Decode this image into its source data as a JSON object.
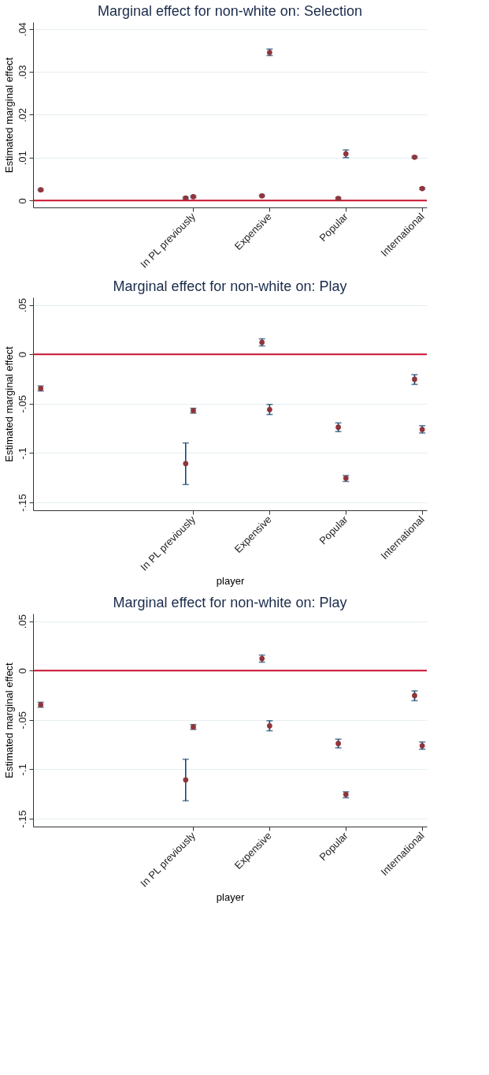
{
  "chart_data": [
    {
      "type": "scatter",
      "title": "Marginal effect for non-white on: Selection",
      "ylabel": "Estimated marginal effect",
      "categories": [
        null,
        null,
        "In PL previously",
        "Expensive",
        "Popular",
        "International"
      ],
      "marker": "circle",
      "grid": "y",
      "legend": false,
      "ylim": [
        -0.0016,
        0.0416
      ],
      "yticks": [
        0,
        {
          "value": 0.01,
          "label": ".01"
        },
        {
          "value": 0.02,
          "label": ".02"
        },
        {
          "value": 0.03,
          "label": ".03"
        },
        {
          "value": 0.04,
          "label": ".04"
        }
      ],
      "ref_lines": [
        {
          "axis": "y",
          "value": 0,
          "color": "#c8102e"
        }
      ],
      "series": [
        {
          "color": "#90353b",
          "values": [
            null,
            null,
            0.0006,
            0.0011,
            0.0005,
            0.0101
          ],
          "errors": [
            null,
            null,
            0.0002,
            0.0002,
            0.0002,
            0.0002
          ]
        },
        {
          "color": "#90353b",
          "values": [
            0.0025,
            null,
            0.0009,
            0.0345,
            0.0109,
            0.0028
          ],
          "errors": [
            0.0002,
            null,
            0.0002,
            [
              0.0338,
              0.0353
            ],
            [
              0.01,
              0.0118
            ],
            0.0002
          ]
        }
      ]
    },
    {
      "type": "scatter",
      "title": "Marginal effect for non-white on: Play",
      "ylabel": "Estimated marginal effect",
      "xlabel": "player",
      "categories": [
        null,
        null,
        "In PL previously",
        "Expensive",
        "Popular",
        "International"
      ],
      "marker": "circle",
      "grid": "y",
      "legend": false,
      "ylim": [
        -0.158,
        0.0577
      ],
      "yticks": [
        {
          "value": -0.15,
          "label": "-.15"
        },
        {
          "value": -0.1,
          "label": "-.1"
        },
        {
          "value": -0.05,
          "label": "-.05"
        },
        0,
        {
          "value": 0.05,
          "label": ".05"
        }
      ],
      "ref_lines": [
        {
          "axis": "y",
          "value": 0,
          "color": "#c8102e"
        }
      ],
      "series": [
        {
          "color": "#90353b",
          "values": [
            null,
            null,
            -0.1107,
            0.0121,
            -0.0739,
            -0.0253
          ],
          "errors": [
            null,
            null,
            [
              -0.1319,
              -0.0898
            ],
            [
              0.0085,
              0.0157
            ],
            [
              -0.0783,
              -0.0695
            ],
            [
              -0.0305,
              -0.0206
            ]
          ]
        },
        {
          "color": "#90353b",
          "values": [
            -0.0346,
            null,
            -0.0571,
            -0.056,
            -0.1255,
            -0.0761
          ],
          "errors": [
            [
              -0.0371,
              -0.0321
            ],
            null,
            [
              -0.0596,
              -0.0547
            ],
            [
              -0.061,
              -0.0508
            ],
            [
              -0.1288,
              -0.1228
            ],
            [
              -0.0797,
              -0.0723
            ]
          ]
        }
      ]
    },
    {
      "type": "scatter",
      "title": "Marginal effect for non-white on: Play",
      "ylabel": "Estimated marginal effect",
      "xlabel": "player",
      "categories": [
        null,
        null,
        "In PL previously",
        "Expensive",
        "Popular",
        "International"
      ],
      "marker": "circle",
      "grid": "y",
      "legend": false,
      "ylim": [
        -0.158,
        0.0577
      ],
      "yticks": [
        {
          "value": -0.15,
          "label": "-.15"
        },
        {
          "value": -0.1,
          "label": "-.1"
        },
        {
          "value": -0.05,
          "label": "-.05"
        },
        0,
        {
          "value": 0.05,
          "label": ".05"
        }
      ],
      "ref_lines": [
        {
          "axis": "y",
          "value": 0,
          "color": "#c8102e"
        }
      ],
      "series": [
        {
          "color": "#90353b",
          "values": [
            null,
            null,
            -0.1107,
            0.0121,
            -0.0739,
            -0.0253
          ],
          "errors": [
            null,
            null,
            [
              -0.1319,
              -0.0898
            ],
            [
              0.0085,
              0.0157
            ],
            [
              -0.0783,
              -0.0695
            ],
            [
              -0.0305,
              -0.0206
            ]
          ]
        },
        {
          "color": "#90353b",
          "values": [
            -0.0346,
            null,
            -0.0571,
            -0.056,
            -0.1255,
            -0.0761
          ],
          "errors": [
            [
              -0.0371,
              -0.0321
            ],
            null,
            [
              -0.0596,
              -0.0547
            ],
            [
              -0.061,
              -0.0508
            ],
            [
              -0.1288,
              -0.1228
            ],
            [
              -0.0797,
              -0.0723
            ]
          ]
        }
      ]
    }
  ]
}
